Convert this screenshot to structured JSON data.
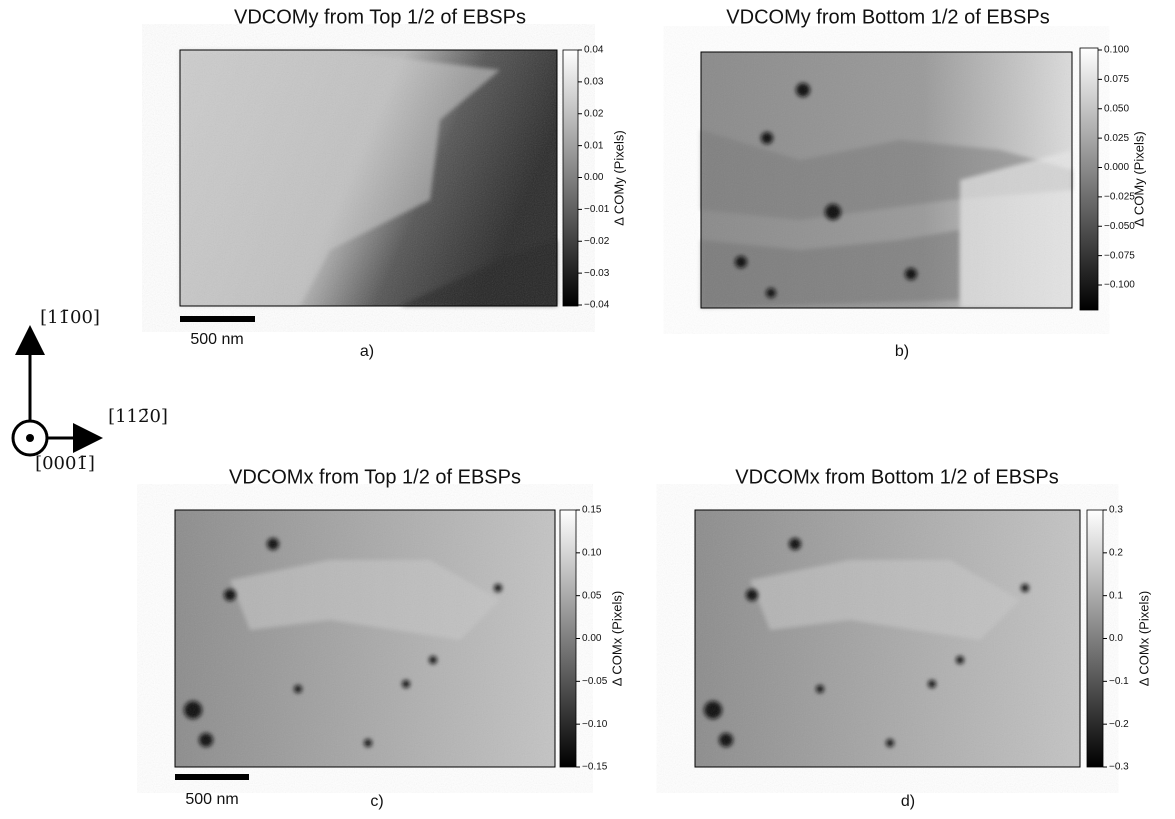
{
  "panels": [
    {
      "title": "VDCOMy from Top 1/2 of EBSPs",
      "colorbar_label": "Δ COMy (Pixels)",
      "label": "a)",
      "scale_bar": "500 nm",
      "ticks": [
        0.04,
        0.03,
        0.02,
        0.01,
        {
          "value": 0,
          "label": "0.00"
        },
        {
          "value": -0.01,
          "label": "−0.01"
        },
        {
          "value": -0.02,
          "label": "−0.02"
        },
        {
          "value": -0.03,
          "label": "−0.03"
        },
        {
          "value": -0.04,
          "label": "−0.04"
        }
      ]
    },
    {
      "title": "VDCOMy from Bottom 1/2 of EBSPs",
      "colorbar_label": "Δ COMy (Pixels)",
      "label": "b)",
      "ticks": [
        {
          "value": 0.1,
          "label": "0.100"
        },
        0.075,
        {
          "value": 0.05,
          "label": "0.050"
        },
        0.025,
        {
          "value": 0,
          "label": "0.000"
        },
        {
          "value": -0.025,
          "label": "−0.025"
        },
        {
          "value": -0.05,
          "label": "−0.050"
        },
        {
          "value": -0.075,
          "label": "−0.075"
        },
        {
          "value": -0.1,
          "label": "−0.100"
        }
      ]
    },
    {
      "title": "VDCOMx from Top 1/2 of EBSPs",
      "colorbar_label": "Δ COMx (Pixels)",
      "label": "c)",
      "scale_bar": "500 nm",
      "ticks": [
        0.15,
        {
          "value": 0.1,
          "label": "0.10"
        },
        0.05,
        {
          "value": 0,
          "label": "0.00"
        },
        {
          "value": -0.05,
          "label": "−0.05"
        },
        {
          "value": -0.1,
          "label": "−0.10"
        },
        {
          "value": -0.15,
          "label": "−0.15"
        }
      ]
    },
    {
      "title": "VDCOMx from Bottom 1/2 of EBSPs",
      "colorbar_label": "Δ COMx (Pixels)",
      "label": "d)",
      "ticks": [
        0.3,
        0.2,
        0.1,
        {
          "value": 0,
          "label": "0.0"
        },
        {
          "value": -0.1,
          "label": "−0.1"
        },
        {
          "value": -0.2,
          "label": "−0.2"
        },
        {
          "value": -0.3,
          "label": "−0.3"
        }
      ]
    }
  ],
  "directions": {
    "up": "[11̄00]",
    "right": "[112̄0]",
    "out": "[0001̄]"
  }
}
